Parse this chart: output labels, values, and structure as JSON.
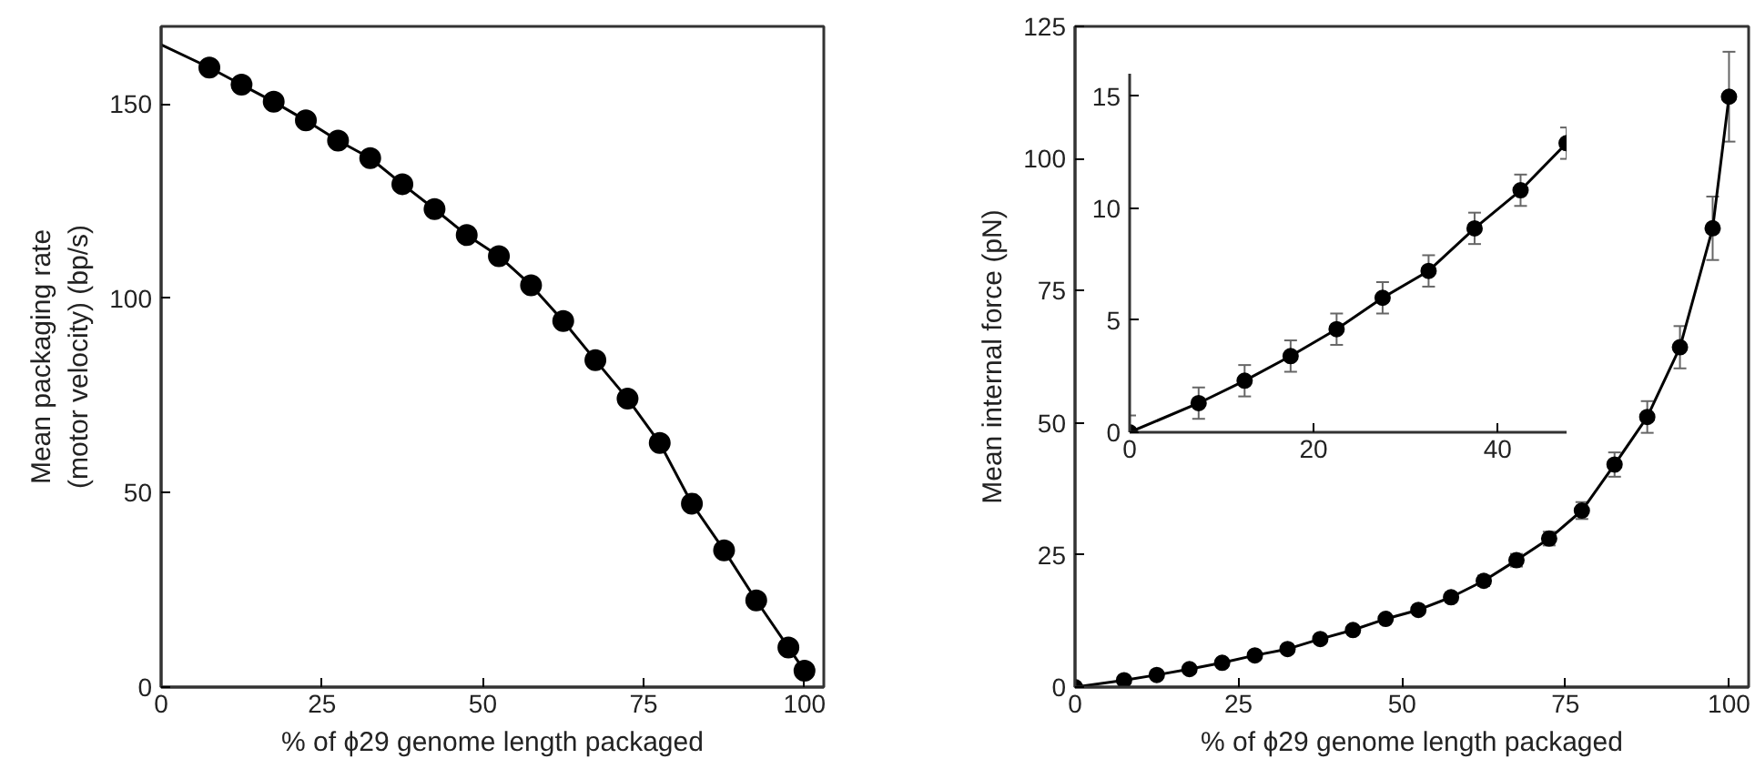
{
  "chart_data": [
    {
      "type": "line",
      "xlabel": "% of ϕ29 genome length packaged",
      "ylabel": "Mean packaging rate\n(motor velocity) (bp/s)",
      "xlim": [
        0,
        103
      ],
      "ylim": [
        0,
        170
      ],
      "xticks": [
        0,
        25,
        50,
        75,
        100
      ],
      "yticks": [
        0,
        50,
        100,
        150
      ],
      "grid": false,
      "series": [
        {
          "marker": "none",
          "color": "#000000",
          "x": [
            0,
            7.5,
            12.5,
            17.5,
            22.5,
            27.5,
            32.5,
            37.5,
            42.5,
            47.5,
            52.5,
            57.5,
            62.5,
            67.5,
            72.5,
            77.5,
            82.5,
            87.5,
            92.5,
            97.5,
            100
          ],
          "values": [
            165.3,
            159.4,
            155,
            150.6,
            145.8,
            140.6,
            136.1,
            129.4,
            123,
            116.3,
            110.9,
            103.4,
            94.2,
            84.1,
            74.2,
            62.8,
            47.2,
            35.2,
            22.3,
            10.2,
            4.2
          ]
        },
        {
          "type": "scatter",
          "marker": "circle",
          "color": "#000000",
          "x": [
            7.5,
            12.5,
            17.5,
            22.5,
            27.5,
            32.5,
            37.5,
            42.5,
            47.5,
            52.5,
            57.5,
            62.5,
            67.5,
            72.5,
            77.5,
            82.5,
            87.5,
            92.5,
            97.5,
            100
          ],
          "values": [
            159.4,
            155,
            150.6,
            145.8,
            140.6,
            136.1,
            129.4,
            123,
            116.3,
            110.9,
            103.4,
            94.2,
            84.1,
            74.2,
            62.8,
            47.2,
            35.2,
            22.3,
            10.2,
            4.2
          ]
        }
      ]
    },
    {
      "type": "line",
      "xlabel": "% of ϕ29 genome length packaged",
      "ylabel": "Mean internal force (pN)",
      "xlim": [
        0,
        103
      ],
      "ylim": [
        0,
        125
      ],
      "xticks": [
        0,
        25,
        50,
        75,
        100
      ],
      "yticks": [
        0,
        25,
        50,
        75,
        100,
        125
      ],
      "grid": false,
      "series": [
        {
          "marker": "circle",
          "color": "#000000",
          "x": [
            0,
            7.5,
            12.5,
            17.5,
            22.5,
            27.5,
            32.5,
            37.5,
            42.5,
            47.5,
            52.5,
            57.5,
            62.5,
            67.5,
            72.5,
            77.5,
            82.5,
            87.5,
            92.5,
            97.5,
            100
          ],
          "values": [
            0,
            1.3,
            2.3,
            3.4,
            4.6,
            6,
            7.2,
            9.1,
            10.8,
            12.9,
            14.6,
            17,
            20.1,
            24,
            28.1,
            33.4,
            42.1,
            51.1,
            64.3,
            86.8,
            111.7
          ],
          "errors": [
            0.75,
            0.7,
            0.7,
            0.7,
            0.7,
            0.7,
            0.7,
            0.7,
            0.7,
            0.7,
            0.8,
            0.9,
            1,
            1.2,
            1.3,
            1.6,
            2.3,
            3,
            4,
            6,
            8.5
          ]
        }
      ]
    },
    {
      "type": "line",
      "xlim": [
        0,
        47.5
      ],
      "ylim": [
        0,
        16
      ],
      "xticks": [
        0,
        20,
        40
      ],
      "yticks": [
        0,
        5,
        10,
        15
      ],
      "grid": false,
      "series": [
        {
          "marker": "circle",
          "color": "#000000",
          "x": [
            0,
            7.5,
            12.5,
            17.5,
            22.5,
            27.5,
            32.5,
            37.5,
            42.5,
            47.5
          ],
          "values": [
            0,
            1.3,
            2.3,
            3.4,
            4.6,
            6,
            7.2,
            9.1,
            10.8,
            12.9
          ],
          "errors": [
            0.75,
            0.7,
            0.7,
            0.7,
            0.7,
            0.7,
            0.7,
            0.7,
            0.7,
            0.7
          ]
        }
      ]
    }
  ]
}
